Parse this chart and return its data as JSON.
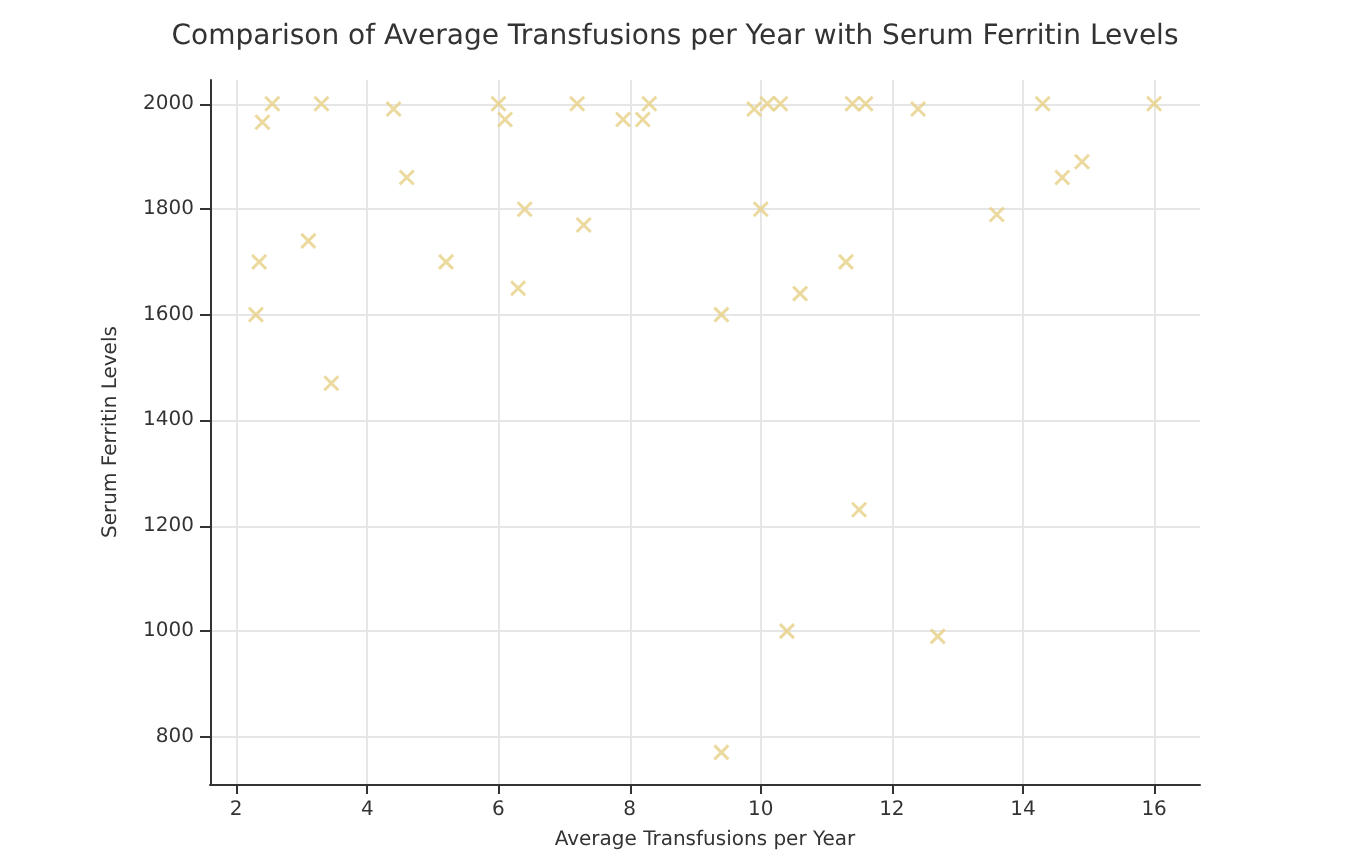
{
  "chart_data": {
    "type": "scatter",
    "title": "Comparison of Average Transfusions per Year with Serum Ferritin Levels",
    "xlabel": "Average Transfusions per Year",
    "ylabel": "Serum Ferritin Levels",
    "x": [
      2.3,
      2.35,
      2.4,
      2.55,
      3.1,
      3.3,
      3.45,
      4.4,
      4.6,
      5.2,
      6.0,
      6.1,
      6.3,
      6.4,
      7.2,
      7.3,
      7.9,
      8.2,
      8.3,
      9.4,
      9.4,
      9.9,
      10.0,
      10.1,
      10.3,
      10.4,
      10.6,
      11.3,
      11.4,
      11.5,
      11.6,
      12.4,
      12.7,
      13.6,
      14.3,
      14.6,
      14.9,
      16.0
    ],
    "values": [
      1600,
      1700,
      1965,
      2000,
      1740,
      2000,
      1470,
      1990,
      1860,
      1700,
      2000,
      1970,
      1650,
      1800,
      2000,
      1770,
      1970,
      1970,
      2000,
      1600,
      770,
      1990,
      1800,
      2000,
      2000,
      1000,
      1640,
      1700,
      2000,
      1230,
      2000,
      1990,
      990,
      1790,
      2000,
      1860,
      1890,
      2000
    ],
    "color": "#e6cf86",
    "marker": "cross",
    "grid": true,
    "xlim": [
      1.6,
      16.7
    ],
    "xticks": [
      2,
      4,
      6,
      8,
      10,
      12,
      14,
      16
    ],
    "ylim": [
      710,
      2045
    ],
    "yticks": [
      800,
      1000,
      1200,
      1400,
      1600,
      1800,
      2000
    ]
  }
}
